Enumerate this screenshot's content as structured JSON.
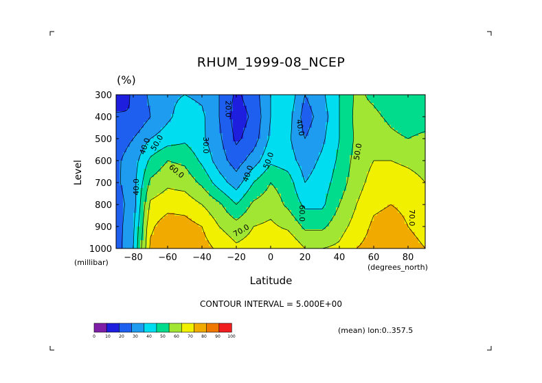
{
  "chart_data": {
    "type": "heatmap",
    "title": "RHUM_1999-08_NCEP",
    "unit": "(%)",
    "ylabel": "Level",
    "ylabel_unit": "(millibar)",
    "xlabel": "Latitude",
    "xlabel_unit": "(degrees_north)",
    "contour_interval_text": "CONTOUR INTERVAL = 5.000E+00",
    "mean_text": "(mean) lon:0..357.5",
    "xlim": [
      -90,
      90
    ],
    "ylim": [
      1000,
      300
    ],
    "x_ticks": [
      -80,
      -60,
      -40,
      -20,
      0,
      20,
      40,
      60,
      80
    ],
    "y_ticks": [
      300,
      400,
      500,
      600,
      700,
      800,
      900,
      1000
    ],
    "x": [
      -90,
      -80,
      -70,
      -60,
      -50,
      -40,
      -30,
      -20,
      -10,
      0,
      10,
      20,
      30,
      40,
      50,
      60,
      70,
      80,
      90
    ],
    "y": [
      300,
      400,
      500,
      600,
      700,
      800,
      900,
      1000
    ],
    "z": [
      [
        12,
        22,
        32,
        38,
        40,
        38,
        30,
        18,
        25,
        40,
        48,
        30,
        38,
        50,
        62,
        58,
        54,
        52,
        50
      ],
      [
        22,
        20,
        30,
        38,
        45,
        42,
        30,
        15,
        22,
        40,
        45,
        25,
        35,
        50,
        63,
        62,
        58,
        55,
        56
      ],
      [
        25,
        30,
        40,
        45,
        48,
        42,
        32,
        18,
        25,
        42,
        42,
        30,
        38,
        50,
        62,
        66,
        62,
        60,
        62
      ],
      [
        28,
        35,
        52,
        60,
        58,
        48,
        35,
        25,
        35,
        48,
        45,
        35,
        42,
        52,
        64,
        70,
        70,
        68,
        66
      ],
      [
        28,
        36,
        62,
        68,
        66,
        58,
        45,
        35,
        50,
        60,
        55,
        40,
        45,
        55,
        66,
        74,
        76,
        74,
        70
      ],
      [
        25,
        35,
        72,
        76,
        76,
        70,
        62,
        50,
        62,
        66,
        58,
        48,
        48,
        60,
        70,
        78,
        80,
        78,
        74
      ],
      [
        25,
        38,
        78,
        86,
        84,
        80,
        70,
        64,
        70,
        72,
        68,
        58,
        58,
        66,
        74,
        82,
        84,
        80,
        76
      ],
      [
        25,
        40,
        82,
        88,
        88,
        84,
        78,
        72,
        74,
        78,
        80,
        70,
        70,
        72,
        80,
        84,
        86,
        84,
        80
      ]
    ],
    "colorbar": {
      "levels": [
        "0",
        "10",
        "20",
        "30",
        "40",
        "50",
        "60",
        "70",
        "80",
        "90",
        "100"
      ],
      "colors": [
        "#7f1fa8",
        "#1e1ede",
        "#1e5ff0",
        "#1e9cf0",
        "#00dcf0",
        "#00dc8c",
        "#a0e632",
        "#f0f000",
        "#f0aa00",
        "#f07800",
        "#f01e1e"
      ]
    },
    "contour_labels": [
      {
        "text": "20.0",
        "x": -25,
        "y": 365,
        "rotation": 90
      },
      {
        "text": "30.0",
        "x": -38,
        "y": 530,
        "rotation": 90
      },
      {
        "text": "40.0",
        "x": -73,
        "y": 535,
        "rotation": -70
      },
      {
        "text": "50.0",
        "x": -66,
        "y": 520,
        "rotation": -60
      },
      {
        "text": "60.0",
        "x": -55,
        "y": 650,
        "rotation": 40
      },
      {
        "text": "40.0",
        "x": -78,
        "y": 720,
        "rotation": -90
      },
      {
        "text": "40.0",
        "x": -13,
        "y": 660,
        "rotation": -70
      },
      {
        "text": "50.0",
        "x": -1,
        "y": 600,
        "rotation": -70
      },
      {
        "text": "70.0",
        "x": -17,
        "y": 920,
        "rotation": -30
      },
      {
        "text": "60.0",
        "x": 18,
        "y": 840,
        "rotation": 90
      },
      {
        "text": "40.0",
        "x": 17,
        "y": 450,
        "rotation": 80
      },
      {
        "text": "50.0",
        "x": 51,
        "y": 560,
        "rotation": -80
      },
      {
        "text": "70.0",
        "x": 82,
        "y": 860,
        "rotation": 90
      }
    ]
  }
}
